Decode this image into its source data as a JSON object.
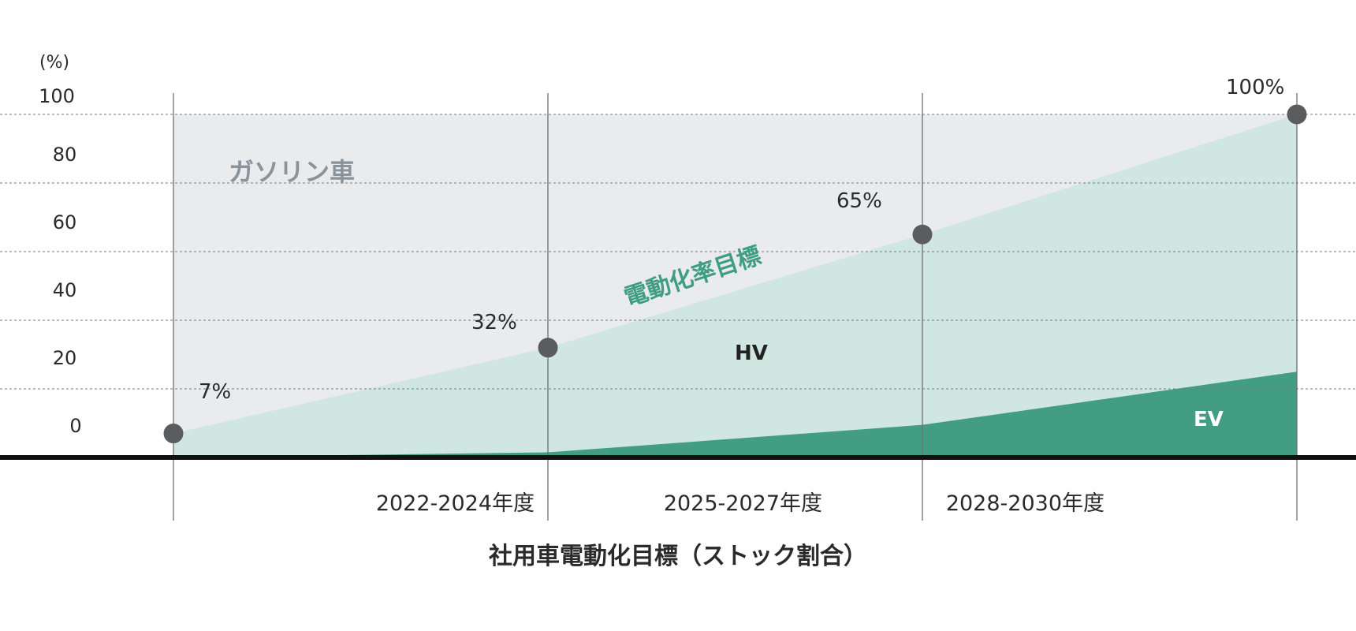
{
  "chart_data": {
    "type": "area",
    "unit_label": "(%)",
    "ylim": [
      0,
      100
    ],
    "yticks": [
      "100",
      "80",
      "60",
      "40",
      "20",
      "0"
    ],
    "x": [
      0,
      1,
      2,
      3
    ],
    "periods": [
      "2022-2024年度",
      "2025-2027年度",
      "2028-2030年度"
    ],
    "title": "社用車電動化目標（ストック割合）",
    "region_labels": {
      "gasoline": "ガソリン車",
      "target": "電動化率目標",
      "hv": "HV",
      "ev": "EV"
    },
    "series": [
      {
        "name": "EV",
        "values": [
          0,
          1.5,
          9.5,
          25
        ],
        "color": "#429d82"
      },
      {
        "name": "HV",
        "values": [
          7,
          30.5,
          55.5,
          75
        ],
        "color": "#cfe7e0"
      },
      {
        "name": "ガソリン車",
        "values": [
          93,
          68,
          35,
          0
        ],
        "color": "#e9ebed"
      }
    ],
    "electrification_rate": {
      "values": [
        7,
        32,
        65,
        100
      ],
      "labels": [
        "7%",
        "32%",
        "65%",
        "100%"
      ]
    },
    "colors": {
      "gasoline": "#e9ebed",
      "hv": "#cfe7e0",
      "ev": "#429d82",
      "marker": "#5a5c5e",
      "target_text": "#3f9d82",
      "gas_text": "#8a939a"
    }
  }
}
